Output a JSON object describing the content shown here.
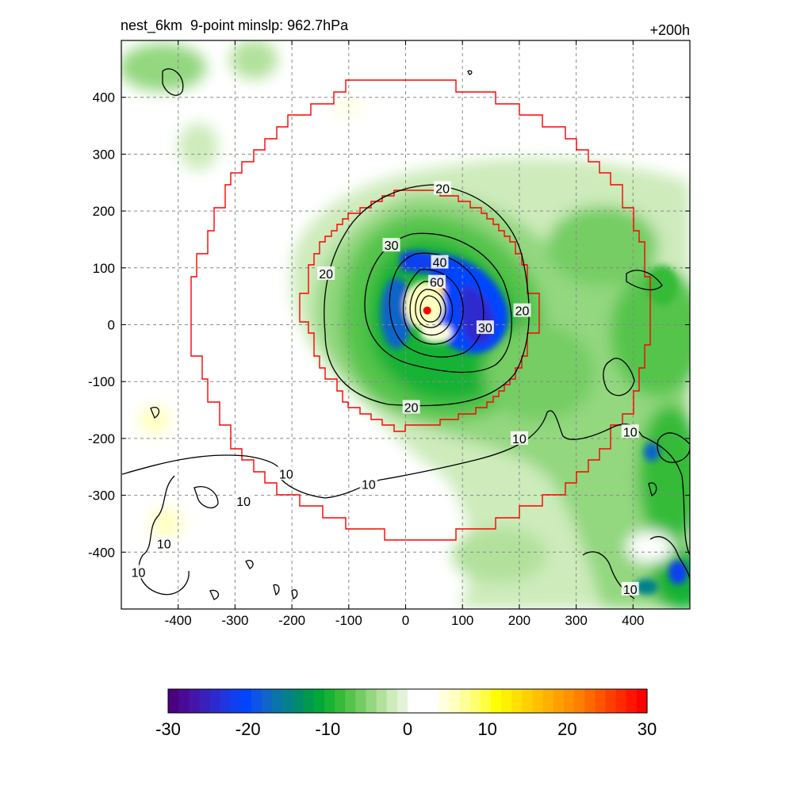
{
  "chart_data": {
    "type": "heatmap",
    "title_left": "nest_6km  9-point minslp: 962.7hPa",
    "title_right": "+200h",
    "xlim": [
      -500,
      500
    ],
    "ylim": [
      -500,
      500
    ],
    "x_ticks": [
      -400,
      -300,
      -200,
      -100,
      0,
      100,
      200,
      300,
      400
    ],
    "y_ticks": [
      400,
      300,
      200,
      100,
      0,
      -100,
      -200,
      -300,
      -400
    ],
    "grid": true,
    "storm_center": [
      38,
      25
    ],
    "contour_labels": [
      {
        "text": "20",
        "x": 65,
        "y": 240
      },
      {
        "text": "30",
        "x": -25,
        "y": 140
      },
      {
        "text": "40",
        "x": 60,
        "y": 110
      },
      {
        "text": "20",
        "x": -140,
        "y": 90
      },
      {
        "text": "20",
        "x": 205,
        "y": 25
      },
      {
        "text": "30",
        "x": 140,
        "y": -5
      },
      {
        "text": "60",
        "x": 55,
        "y": 75
      },
      {
        "text": "20",
        "x": 10,
        "y": -145
      },
      {
        "text": "10",
        "x": 200,
        "y": -200
      },
      {
        "text": "10",
        "x": 395,
        "y": -188
      },
      {
        "text": "10",
        "x": -210,
        "y": -262
      },
      {
        "text": "10",
        "x": -65,
        "y": -280
      },
      {
        "text": "10",
        "x": -285,
        "y": -310
      },
      {
        "text": "10",
        "x": -425,
        "y": -385
      },
      {
        "text": "10",
        "x": -470,
        "y": -435
      },
      {
        "text": "10",
        "x": 395,
        "y": -465
      }
    ],
    "colorbar": {
      "min": -30,
      "max": 30,
      "ticks": [
        "-30",
        "-20",
        "-10",
        "0",
        "10",
        "20",
        "30"
      ],
      "colors": [
        "#4b0082",
        "#4a0a95",
        "#4514a8",
        "#3a1fbb",
        "#2d2acd",
        "#1f35de",
        "#0f3ff0",
        "#0045ff",
        "#0d55e6",
        "#0f65c8",
        "#0b74a8",
        "#05818a",
        "#008c6c",
        "#009a4d",
        "#00a838",
        "#18b234",
        "#35bb38",
        "#55c44c",
        "#74cd64",
        "#93d77f",
        "#b2e19c",
        "#cdebbb",
        "#e3f3d7",
        "#ffffff",
        "#ffffff",
        "#ffffff",
        "#ffffe0",
        "#ffffc0",
        "#ffff99",
        "#ffff70",
        "#ffff40",
        "#ffff00",
        "#fff000",
        "#ffe000",
        "#ffd000",
        "#ffc000",
        "#ffb000",
        "#ffa000",
        "#ff9000",
        "#ff7f00",
        "#ff6a00",
        "#ff5500",
        "#ff3f00",
        "#ff2a00",
        "#ff1500",
        "#ff0000"
      ]
    }
  }
}
